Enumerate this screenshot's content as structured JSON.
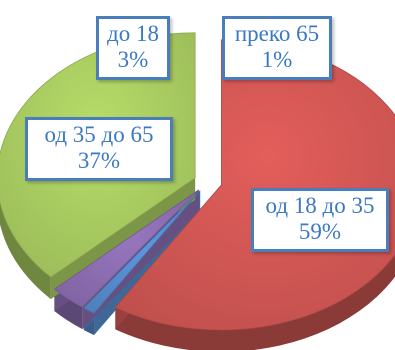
{
  "chart_data": {
    "type": "pie",
    "title": "",
    "slices": [
      {
        "label": "од 18 до 35",
        "percent_label": "59%",
        "value": 59,
        "color": "#c0504d"
      },
      {
        "label": "преко 65",
        "percent_label": "1%",
        "value": 1,
        "color": "#4f81bd"
      },
      {
        "label": "до 18",
        "percent_label": "3%",
        "value": 3,
        "color": "#8064a2"
      },
      {
        "label": "од 35 до 65",
        "percent_label": "37%",
        "value": 37,
        "color": "#9bbb59"
      }
    ],
    "style": "3d-exploded",
    "legend": "none"
  }
}
